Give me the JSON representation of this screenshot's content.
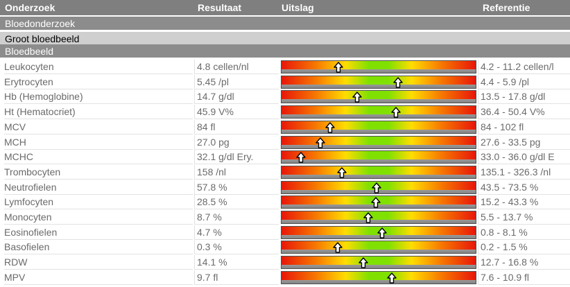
{
  "header": {
    "col_test": "Onderzoek",
    "col_result": "Resultaat",
    "col_chart": "Uitslag",
    "col_ref": "Referentie"
  },
  "sections": {
    "group": "Bloedonderzoek",
    "panel": "Groot bloedbeeld",
    "subpanel": "Bloedbeeld"
  },
  "colors": {
    "header_bg": "#7f7f7f",
    "low_high": "#e8160a",
    "normal": "#80e000"
  },
  "icons": {
    "marker": "up-arrow-icon"
  },
  "rows": [
    {
      "name": "Leukocyten",
      "result": "4.8 cellen/nl",
      "reference": "4.2 - 11.2 cellen/l",
      "value": 4.8,
      "low": 4.2,
      "high": 11.2
    },
    {
      "name": "Erytrocyten",
      "result": "5.45 /pl",
      "reference": "4.4 - 5.9 /pl",
      "value": 5.45,
      "low": 4.4,
      "high": 5.9
    },
    {
      "name": "Hb (Hemoglobine)",
      "result": "14.7 g/dl",
      "reference": "13.5 - 17.8 g/dl",
      "value": 14.7,
      "low": 13.5,
      "high": 17.8
    },
    {
      "name": "Ht (Hematocriet)",
      "result": "45.9 V%",
      "reference": "36.4 - 50.4 V%",
      "value": 45.9,
      "low": 36.4,
      "high": 50.4
    },
    {
      "name": "MCV",
      "result": "84 fl",
      "reference": "84 - 102 fl",
      "value": 84,
      "low": 84,
      "high": 102
    },
    {
      "name": "MCH",
      "result": "27.0 pg",
      "reference": "27.6 - 33.5 pg",
      "value": 27.0,
      "low": 27.6,
      "high": 33.5
    },
    {
      "name": "MCHC",
      "result": "32.1 g/dl Ery.",
      "reference": "33.0 - 36.0 g/dl E",
      "value": 32.1,
      "low": 33.0,
      "high": 36.0
    },
    {
      "name": "Trombocyten",
      "result": "158 /nl",
      "reference": "135.1 - 326.3 /nl",
      "value": 158,
      "low": 135.1,
      "high": 326.3
    },
    {
      "name": "Neutrofielen",
      "result": "57.8 %",
      "reference": "43.5 - 73.5 %",
      "value": 57.8,
      "low": 43.5,
      "high": 73.5
    },
    {
      "name": "Lymfocyten",
      "result": "28.5 %",
      "reference": "15.2 - 43.3 %",
      "value": 28.5,
      "low": 15.2,
      "high": 43.3
    },
    {
      "name": "Monocyten",
      "result": "8.7 %",
      "reference": "5.5 - 13.7 %",
      "value": 8.7,
      "low": 5.5,
      "high": 13.7
    },
    {
      "name": "Eosinofielen",
      "result": "4.7 %",
      "reference": "0.8 - 8.1 %",
      "value": 4.7,
      "low": 0.8,
      "high": 8.1
    },
    {
      "name": "Basofielen",
      "result": "0.3 %",
      "reference": "0.2 - 1.5 %",
      "value": 0.3,
      "low": 0.2,
      "high": 1.5
    },
    {
      "name": "RDW",
      "result": "14.1 %",
      "reference": "12.7 - 16.8 %",
      "value": 14.1,
      "low": 12.7,
      "high": 16.8
    },
    {
      "name": "MPV",
      "result": "9.7 fl",
      "reference": "7.6 - 10.9 fl",
      "value": 9.7,
      "low": 7.6,
      "high": 10.9
    }
  ]
}
